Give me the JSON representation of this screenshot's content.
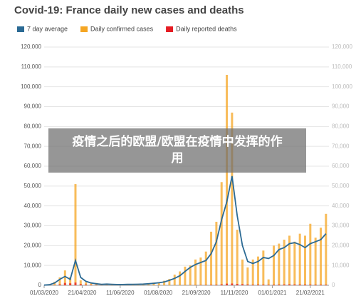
{
  "chart_data": {
    "type": "bar-line",
    "title": "Covid-19: France daily new cases and deaths",
    "x": [
      "01/03/2020",
      "08/03/2020",
      "15/03/2020",
      "22/03/2020",
      "29/03/2020",
      "05/04/2020",
      "12/04/2020",
      "19/04/2020",
      "26/04/2020",
      "03/05/2020",
      "10/05/2020",
      "17/05/2020",
      "24/05/2020",
      "31/05/2020",
      "07/06/2020",
      "14/06/2020",
      "21/06/2020",
      "28/06/2020",
      "05/07/2020",
      "12/07/2020",
      "19/07/2020",
      "26/07/2020",
      "02/08/2020",
      "09/08/2020",
      "16/08/2020",
      "23/08/2020",
      "30/08/2020",
      "06/09/2020",
      "13/09/2020",
      "20/09/2020",
      "27/09/2020",
      "04/10/2020",
      "11/10/2020",
      "18/10/2020",
      "25/10/2020",
      "01/11/2020",
      "08/11/2020",
      "15/11/2020",
      "22/11/2020",
      "29/11/2020",
      "06/12/2020",
      "13/12/2020",
      "20/12/2020",
      "27/12/2020",
      "03/01/2021",
      "10/01/2021",
      "17/01/2021",
      "24/01/2021",
      "31/01/2021",
      "07/02/2021",
      "14/02/2021",
      "21/02/2021",
      "28/02/2021",
      "07/03/2021",
      "14/03/2021"
    ],
    "series": [
      {
        "name": "7 day average",
        "color": "#2b6a94",
        "kind": "line",
        "values": [
          100,
          300,
          1200,
          3000,
          4500,
          3000,
          12500,
          4000,
          2000,
          1200,
          800,
          500,
          600,
          500,
          400,
          400,
          450,
          500,
          550,
          600,
          800,
          1000,
          1300,
          1700,
          2500,
          3500,
          4800,
          7000,
          9000,
          10500,
          11500,
          12500,
          16000,
          22000,
          33000,
          42000,
          55000,
          35000,
          20000,
          12000,
          11000,
          12000,
          14000,
          13500,
          15000,
          18000,
          19000,
          21000,
          21500,
          20500,
          19000,
          21000,
          22000,
          23000,
          26000
        ]
      },
      {
        "name": "Daily confirmed cases",
        "color": "#f5a623",
        "kind": "bar",
        "values": [
          0,
          600,
          1800,
          4000,
          7500,
          4200,
          51000,
          2500,
          1500,
          900,
          1200,
          400,
          700,
          300,
          600,
          500,
          400,
          700,
          400,
          900,
          1100,
          1400,
          1600,
          2300,
          3200,
          5400,
          7000,
          9400,
          10000,
          13000,
          14000,
          17000,
          27000,
          32000,
          52000,
          106000,
          87000,
          28000,
          13000,
          9000,
          13000,
          14500,
          17500,
          3000,
          20000,
          21000,
          23000,
          25000,
          22000,
          26000,
          25000,
          31000,
          24000,
          29000,
          36000
        ]
      },
      {
        "name": "Daily reported deaths",
        "color": "#e51c23",
        "kind": "bar",
        "values": [
          0,
          20,
          120,
          500,
          1200,
          1000,
          1400,
          600,
          400,
          250,
          150,
          80,
          60,
          40,
          30,
          25,
          20,
          15,
          15,
          10,
          15,
          15,
          10,
          15,
          20,
          20,
          30,
          60,
          80,
          120,
          150,
          180,
          250,
          300,
          500,
          850,
          900,
          700,
          600,
          450,
          350,
          400,
          380,
          300,
          350,
          400,
          450,
          500,
          450,
          420,
          400,
          380,
          350,
          330,
          320
        ]
      }
    ],
    "xlim": [
      "01/03/2020",
      "18/03/2021"
    ],
    "xticks": [
      "01/03/2020",
      "21/04/2020",
      "11/06/2020",
      "01/08/2020",
      "21/09/2020",
      "11/11/2020",
      "01/01/2021",
      "21/02/2021"
    ],
    "ylim": [
      0,
      120000
    ],
    "yticks": [
      0,
      {
        "value": 10000,
        "label": "10,000"
      },
      {
        "value": 20000,
        "label": "20,000"
      },
      {
        "value": 30000,
        "label": "30,000"
      },
      {
        "value": 40000,
        "label": "40,000"
      },
      {
        "value": 50000,
        "label": "50,000"
      },
      {
        "value": 60000,
        "label": "60,000"
      },
      {
        "value": 70000,
        "label": "70,000"
      },
      {
        "value": 80000,
        "label": "80,000"
      },
      {
        "value": 90000,
        "label": "90,000"
      },
      {
        "value": 100000,
        "label": "100,000"
      },
      {
        "value": 110000,
        "label": "110,000"
      },
      {
        "value": 120000,
        "label": "120,000"
      }
    ],
    "y2lim": [
      0,
      120000
    ],
    "y2ticks": [
      0,
      {
        "value": 10000,
        "label": "10,000"
      },
      {
        "value": 20000,
        "label": "20,000"
      },
      {
        "value": 30000,
        "label": "30,000"
      },
      {
        "value": 40000,
        "label": "40,000"
      },
      {
        "value": 50000,
        "label": "50,000"
      },
      {
        "value": 60000,
        "label": "60,000"
      },
      {
        "value": 70000,
        "label": "70,000"
      },
      {
        "value": 80000,
        "label": "80,000"
      },
      {
        "value": 90000,
        "label": "90,000"
      },
      {
        "value": 100000,
        "label": "100,000"
      },
      {
        "value": 110000,
        "label": "110,000"
      },
      {
        "value": 120000,
        "label": "120,000"
      }
    ],
    "grid": true
  },
  "overlay": {
    "text": "疫情之后的欧盟/欧盟在疫情中发挥的作用"
  }
}
